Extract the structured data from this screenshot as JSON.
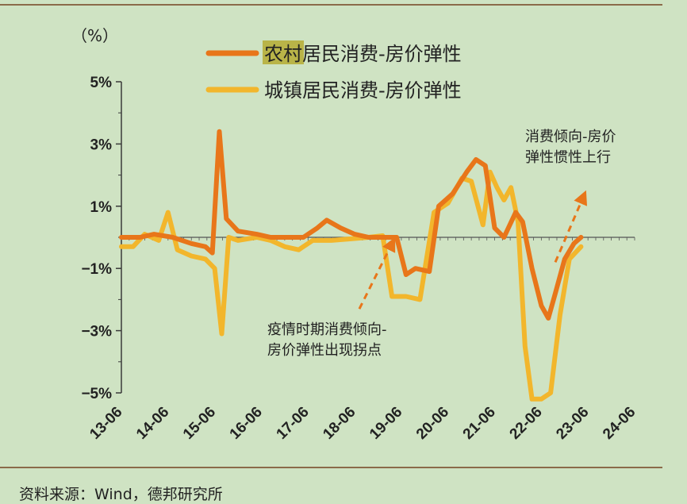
{
  "chart_data": {
    "type": "line",
    "unit_label": "（%）",
    "x_ticks": [
      "13-06",
      "14-06",
      "15-06",
      "16-06",
      "17-06",
      "18-06",
      "19-06",
      "20-06",
      "21-06",
      "22-06",
      "23-06",
      "24-06"
    ],
    "y_ticks": [
      "5%",
      "3%",
      "1%",
      "−1%",
      "−3%",
      "−5%"
    ],
    "ylim": [
      -5,
      5
    ],
    "grid": false,
    "legend_placement": "top",
    "series": [
      {
        "name": "农村居民消费-房价弹性",
        "name_highlight": "农村",
        "name_rest": "居民消费-房价弹性",
        "color": "#e8761a",
        "points": [
          [
            2013.5,
            0.0
          ],
          [
            2013.9,
            0.0
          ],
          [
            2014.2,
            0.1
          ],
          [
            2014.6,
            0.0
          ],
          [
            2015.0,
            -0.2
          ],
          [
            2015.3,
            -0.3
          ],
          [
            2015.45,
            -0.5
          ],
          [
            2015.6,
            3.4
          ],
          [
            2015.75,
            0.6
          ],
          [
            2016.0,
            0.2
          ],
          [
            2016.4,
            0.1
          ],
          [
            2016.7,
            0.0
          ],
          [
            2017.0,
            0.0
          ],
          [
            2017.4,
            0.0
          ],
          [
            2017.7,
            0.3
          ],
          [
            2017.9,
            0.55
          ],
          [
            2018.2,
            0.3
          ],
          [
            2018.5,
            0.1
          ],
          [
            2018.8,
            0.0
          ],
          [
            2019.1,
            0.0
          ],
          [
            2019.4,
            0.0
          ],
          [
            2019.6,
            -1.2
          ],
          [
            2019.8,
            -1.0
          ],
          [
            2020.1,
            -1.1
          ],
          [
            2020.3,
            1.0
          ],
          [
            2020.6,
            1.4
          ],
          [
            2020.9,
            2.1
          ],
          [
            2021.1,
            2.5
          ],
          [
            2021.3,
            2.3
          ],
          [
            2021.5,
            0.3
          ],
          [
            2021.7,
            0.0
          ],
          [
            2021.95,
            0.8
          ],
          [
            2022.1,
            0.5
          ],
          [
            2022.3,
            -1.0
          ],
          [
            2022.5,
            -2.2
          ],
          [
            2022.65,
            -2.6
          ],
          [
            2022.8,
            -1.8
          ],
          [
            2023.0,
            -0.7
          ],
          [
            2023.2,
            -0.2
          ],
          [
            2023.35,
            0.0
          ]
        ]
      },
      {
        "name": "城镇居民消费-房价弹性",
        "name_highlight": "",
        "name_rest": "城镇居民消费-房价弹性",
        "color": "#f2b62c",
        "points": [
          [
            2013.5,
            -0.3
          ],
          [
            2013.75,
            -0.3
          ],
          [
            2014.0,
            0.1
          ],
          [
            2014.3,
            -0.1
          ],
          [
            2014.5,
            0.8
          ],
          [
            2014.7,
            -0.4
          ],
          [
            2015.0,
            -0.6
          ],
          [
            2015.3,
            -0.7
          ],
          [
            2015.5,
            -1.0
          ],
          [
            2015.65,
            -3.1
          ],
          [
            2015.8,
            0.0
          ],
          [
            2016.0,
            -0.1
          ],
          [
            2016.4,
            0.0
          ],
          [
            2016.7,
            -0.1
          ],
          [
            2017.0,
            -0.3
          ],
          [
            2017.3,
            -0.4
          ],
          [
            2017.6,
            -0.1
          ],
          [
            2018.0,
            -0.1
          ],
          [
            2018.4,
            -0.05
          ],
          [
            2018.8,
            0.0
          ],
          [
            2019.1,
            0.05
          ],
          [
            2019.3,
            -1.9
          ],
          [
            2019.6,
            -1.9
          ],
          [
            2019.9,
            -2.0
          ],
          [
            2020.2,
            0.8
          ],
          [
            2020.5,
            1.1
          ],
          [
            2020.8,
            1.9
          ],
          [
            2021.0,
            1.8
          ],
          [
            2021.25,
            0.4
          ],
          [
            2021.4,
            2.1
          ],
          [
            2021.55,
            1.6
          ],
          [
            2021.7,
            1.2
          ],
          [
            2021.85,
            1.6
          ],
          [
            2022.0,
            0.5
          ],
          [
            2022.15,
            -3.5
          ],
          [
            2022.3,
            -5.2
          ],
          [
            2022.5,
            -5.2
          ],
          [
            2022.7,
            -5.0
          ],
          [
            2022.9,
            -2.5
          ],
          [
            2023.1,
            -0.7
          ],
          [
            2023.35,
            -0.3
          ]
        ]
      }
    ],
    "annotations": [
      {
        "lines": [
          "消费倾向-房价",
          "弹性惯性上行"
        ],
        "arrow_from": [
          2022.8,
          -0.8
        ],
        "arrow_to": [
          2023.4,
          1.3
        ]
      },
      {
        "lines": [
          "疫情时期消费倾向-",
          "房价弹性出现拐点"
        ],
        "arrow_from": [
          2018.6,
          -2.3
        ],
        "arrow_to": [
          2019.3,
          -0.2
        ]
      }
    ]
  },
  "footer": {
    "source": "资料来源：Wind，德邦研究所"
  },
  "colors": {
    "background": "#cfe3c3",
    "axis": "#3a3a3a",
    "zero_line": "#555555",
    "legend_highlight": "#b9b448",
    "arrow": "#e8761a"
  }
}
